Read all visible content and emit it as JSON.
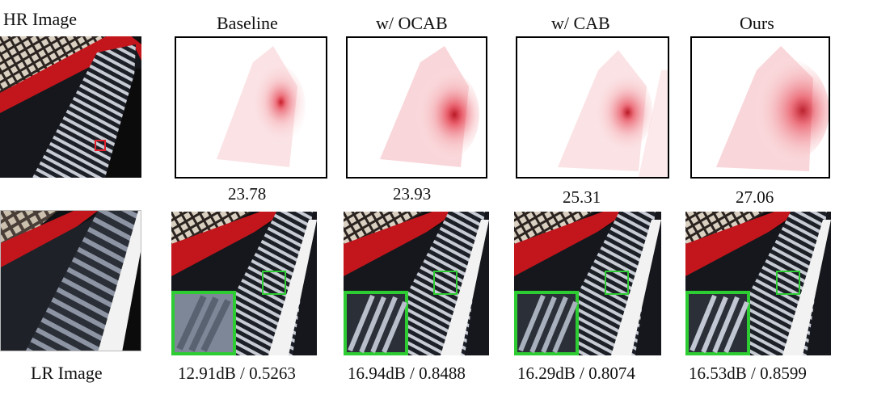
{
  "figure": {
    "hr_label": "HR Image",
    "lr_label": "LR Image",
    "columns": [
      {
        "title": "Baseline",
        "attr_score": "23.78",
        "metrics": "12.91dB / 0.5263"
      },
      {
        "title": "w/ OCAB",
        "attr_score": "23.93",
        "metrics": "16.94dB / 0.8488"
      },
      {
        "title": "w/ CAB",
        "attr_score": "25.31",
        "metrics": "16.29dB / 0.8074"
      },
      {
        "title": "Ours",
        "attr_score": "27.06",
        "metrics": "16.53dB / 0.8599"
      }
    ]
  },
  "colors": {
    "heat": "#e0182b",
    "zoom_box": "#2ecc33",
    "roi_box": "#e0212b",
    "facade_stripe": "#c7cbd4",
    "dark_glass": "#1c1f26",
    "red_beam": "#c3161c"
  }
}
